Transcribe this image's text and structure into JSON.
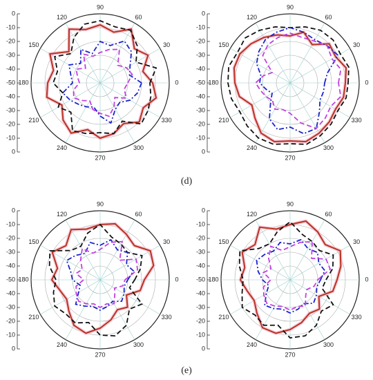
{
  "captions": [
    "(d)",
    "(e)"
  ],
  "chart_data": [
    {
      "type": "polar",
      "rlim": [
        -50,
        0
      ],
      "rticks": [
        -50,
        -40,
        -30,
        -20,
        -10,
        0
      ],
      "angles": [
        0,
        30,
        60,
        90,
        120,
        150,
        180,
        210,
        240,
        270,
        300,
        330
      ],
      "theta": [
        0,
        15,
        30,
        45,
        60,
        75,
        90,
        105,
        120,
        135,
        150,
        165,
        180,
        195,
        210,
        225,
        240,
        255,
        270,
        285,
        300,
        315,
        330,
        345
      ],
      "series": [
        {
          "color": "#b83224",
          "style": "solid",
          "values": [
            -12,
            -18,
            -10,
            -15,
            -5,
            -12,
            -8,
            -10,
            -5,
            -18,
            -8,
            -15,
            -12,
            -10,
            -18,
            -12,
            -8,
            -15,
            -10,
            -12,
            -16,
            -10,
            -14,
            -8
          ]
        },
        {
          "color": "#111111",
          "style": "dashed",
          "values": [
            -14,
            -8,
            -20,
            -12,
            -6,
            -8,
            -5,
            -6,
            -12,
            -20,
            -12,
            -18,
            -16,
            -22,
            -15,
            -20,
            -10,
            -12,
            -14,
            -12,
            -18,
            -8,
            -10,
            -12
          ]
        },
        {
          "color": "#1a22cc",
          "style": "dashdot",
          "values": [
            -20,
            -28,
            -25,
            -18,
            -15,
            -22,
            -20,
            -28,
            -22,
            -30,
            -24,
            -28,
            -30,
            -22,
            -25,
            -28,
            -30,
            -32,
            -26,
            -20,
            -28,
            -30,
            -25,
            -22
          ]
        },
        {
          "color": "#c040e0",
          "style": "dashed",
          "values": [
            -30,
            -26,
            -28,
            -32,
            -22,
            -25,
            -28,
            -30,
            -26,
            -35,
            -30,
            -33,
            -35,
            -30,
            -28,
            -32,
            -35,
            -30,
            -28,
            -25,
            -30,
            -35,
            -28,
            -32
          ]
        }
      ]
    },
    {
      "type": "polar",
      "rlim": [
        -50,
        0
      ],
      "rticks": [
        -50,
        -40,
        -30,
        -20,
        -10,
        0
      ],
      "angles": [
        0,
        30,
        60,
        90,
        120,
        150,
        180,
        210,
        240,
        270,
        300,
        330
      ],
      "theta": [
        0,
        15,
        30,
        45,
        60,
        75,
        90,
        105,
        120,
        135,
        150,
        165,
        180,
        195,
        210,
        225,
        240,
        255,
        270,
        285,
        300,
        315,
        330,
        345
      ],
      "series": [
        {
          "color": "#b83224",
          "style": "solid",
          "values": [
            -10,
            -8,
            -12,
            -10,
            -18,
            -12,
            -16,
            -14,
            -12,
            -10,
            -8,
            -8,
            -10,
            -12,
            -18,
            -14,
            -8,
            -6,
            -8,
            -6,
            -8,
            -10,
            -12,
            -10
          ]
        },
        {
          "color": "#111111",
          "style": "dashed",
          "values": [
            -8,
            -6,
            -8,
            -6,
            -6,
            -8,
            -10,
            -8,
            -6,
            -4,
            -6,
            -4,
            -5,
            -6,
            -8,
            -6,
            -4,
            -4,
            -6,
            -4,
            -6,
            -8,
            -10,
            -8
          ]
        },
        {
          "color": "#1a22cc",
          "style": "dashdot",
          "values": [
            -25,
            -22,
            -10,
            -12,
            -14,
            -12,
            -10,
            -12,
            -14,
            -18,
            -22,
            -28,
            -28,
            -32,
            -35,
            -30,
            -20,
            -15,
            -18,
            -12,
            -12,
            -20,
            -25,
            -25
          ]
        },
        {
          "color": "#c040e0",
          "style": "dashed",
          "values": [
            -15,
            -12,
            -15,
            -12,
            -15,
            -16,
            -14,
            -16,
            -18,
            -22,
            -35,
            -30,
            -25,
            -28,
            -30,
            -32,
            -28,
            -30,
            -28,
            -20,
            -12,
            -14,
            -16,
            -12
          ]
        }
      ]
    },
    {
      "type": "polar",
      "rlim": [
        -50,
        0
      ],
      "rticks": [
        -50,
        -40,
        -30,
        -20,
        -10,
        0
      ],
      "angles": [
        0,
        30,
        60,
        90,
        120,
        150,
        180,
        210,
        240,
        270,
        300,
        330
      ],
      "theta": [
        0,
        15,
        30,
        45,
        60,
        75,
        90,
        105,
        120,
        135,
        150,
        165,
        180,
        195,
        210,
        225,
        240,
        255,
        270,
        285,
        300,
        315,
        330,
        345
      ],
      "series": [
        {
          "color": "#b83224",
          "style": "solid",
          "values": [
            -18,
            -10,
            -8,
            -15,
            -12,
            -8,
            -10,
            -12,
            -8,
            -15,
            -10,
            -18,
            -15,
            -20,
            -22,
            -18,
            -12,
            -10,
            -15,
            -20,
            -25,
            -22,
            -28,
            -20
          ]
        },
        {
          "color": "#111111",
          "style": "dashed",
          "values": [
            -25,
            -20,
            -15,
            -22,
            -20,
            -18,
            -10,
            -15,
            -22,
            -20,
            -8,
            -12,
            -18,
            -15,
            -12,
            -15,
            -14,
            -18,
            -10,
            -8,
            -12,
            -20,
            -15,
            -28
          ]
        },
        {
          "color": "#1a22cc",
          "style": "dashdot",
          "values": [
            -30,
            -25,
            -28,
            -22,
            -25,
            -20,
            -25,
            -22,
            -28,
            -25,
            -22,
            -28,
            -30,
            -35,
            -32,
            -25,
            -28,
            -30,
            -28,
            -30,
            -32,
            -28,
            -30,
            -32
          ]
        },
        {
          "color": "#c040e0",
          "style": "dashed",
          "values": [
            -32,
            -22,
            -20,
            -30,
            -18,
            -22,
            -28,
            -30,
            -24,
            -30,
            -35,
            -32,
            -38,
            -32,
            -30,
            -28,
            -30,
            -32,
            -30,
            -32,
            -30,
            -35,
            -38,
            -33
          ]
        }
      ]
    },
    {
      "type": "polar",
      "rlim": [
        -50,
        0
      ],
      "rticks": [
        -50,
        -40,
        -30,
        -20,
        -10,
        0
      ],
      "angles": [
        0,
        30,
        60,
        90,
        120,
        150,
        180,
        210,
        240,
        270,
        300,
        330
      ],
      "theta": [
        0,
        15,
        30,
        45,
        60,
        75,
        90,
        105,
        120,
        135,
        150,
        165,
        180,
        195,
        210,
        225,
        240,
        255,
        270,
        285,
        300,
        315,
        330,
        345
      ],
      "series": [
        {
          "color": "#b83224",
          "style": "solid",
          "values": [
            -16,
            -12,
            -8,
            -14,
            -10,
            -6,
            -10,
            -12,
            -6,
            -14,
            -10,
            -16,
            -14,
            -18,
            -20,
            -16,
            -10,
            -10,
            -14,
            -18,
            -22,
            -20,
            -26,
            -18
          ]
        },
        {
          "color": "#111111",
          "style": "dashed",
          "values": [
            -24,
            -18,
            -14,
            -20,
            -18,
            -16,
            -8,
            -14,
            -20,
            -18,
            -8,
            -12,
            -16,
            -14,
            -10,
            -14,
            -12,
            -16,
            -8,
            -8,
            -12,
            -18,
            -14,
            -26
          ]
        },
        {
          "color": "#1a22cc",
          "style": "dashdot",
          "values": [
            -28,
            -24,
            -26,
            -22,
            -24,
            -20,
            -24,
            -22,
            -26,
            -24,
            -22,
            -26,
            -30,
            -34,
            -30,
            -24,
            -26,
            -28,
            -26,
            -28,
            -30,
            -26,
            -28,
            -30
          ]
        },
        {
          "color": "#c040e0",
          "style": "dashed",
          "values": [
            -30,
            -20,
            -20,
            -28,
            -18,
            -22,
            -26,
            -28,
            -22,
            -28,
            -34,
            -30,
            -36,
            -30,
            -28,
            -26,
            -28,
            -30,
            -28,
            -30,
            -28,
            -34,
            -36,
            -32
          ]
        }
      ]
    }
  ]
}
